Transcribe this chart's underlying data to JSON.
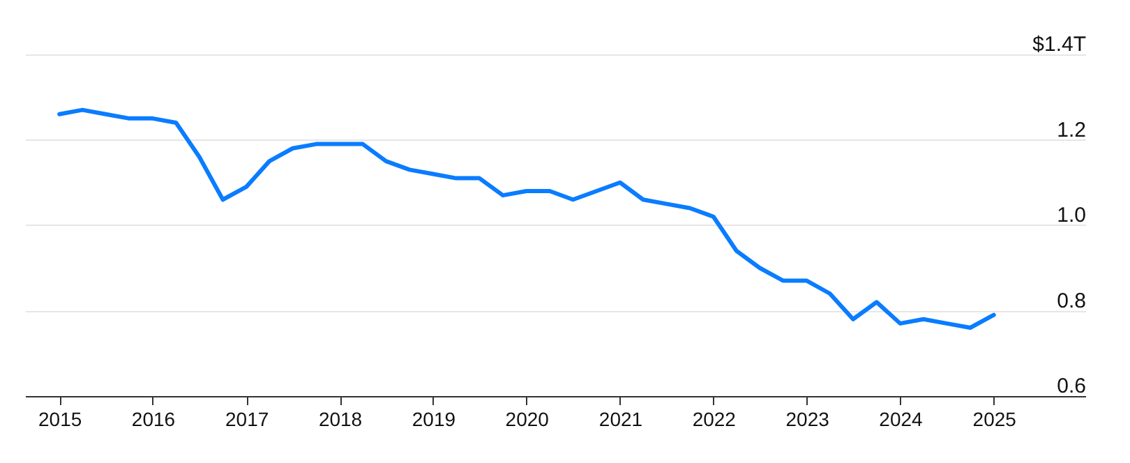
{
  "chart_data": {
    "type": "line",
    "x": [
      "2015-01",
      "2015-04",
      "2015-07",
      "2015-10",
      "2016-01",
      "2016-04",
      "2016-07",
      "2016-10",
      "2017-01",
      "2017-04",
      "2017-07",
      "2017-10",
      "2018-01",
      "2018-04",
      "2018-07",
      "2018-10",
      "2019-01",
      "2019-04",
      "2019-07",
      "2019-10",
      "2020-01",
      "2020-04",
      "2020-07",
      "2020-10",
      "2021-01",
      "2021-04",
      "2021-07",
      "2021-10",
      "2022-01",
      "2022-04",
      "2022-07",
      "2022-10",
      "2023-01",
      "2023-04",
      "2023-07",
      "2023-10",
      "2024-01",
      "2024-04",
      "2024-07",
      "2024-10",
      "2025-01"
    ],
    "series": [
      {
        "color": "#0a7cff",
        "values": [
          1.26,
          1.27,
          1.26,
          1.25,
          1.25,
          1.24,
          1.16,
          1.06,
          1.09,
          1.15,
          1.18,
          1.19,
          1.19,
          1.19,
          1.15,
          1.13,
          1.12,
          1.11,
          1.11,
          1.07,
          1.08,
          1.08,
          1.06,
          1.08,
          1.1,
          1.06,
          1.05,
          1.04,
          1.02,
          0.94,
          0.9,
          0.87,
          0.87,
          0.84,
          0.78,
          0.82,
          0.77,
          0.78,
          0.77,
          0.76,
          0.79
        ]
      }
    ],
    "xlim": [
      "2014-08-20",
      "2025-12-25"
    ],
    "xticks": [
      {
        "value": "2015",
        "label": "2015"
      },
      {
        "value": "2016",
        "label": "2016"
      },
      {
        "value": "2017",
        "label": "2017"
      },
      {
        "value": "2018",
        "label": "2018"
      },
      {
        "value": "2019",
        "label": "2019"
      },
      {
        "value": "2020",
        "label": "2020"
      },
      {
        "value": "2021",
        "label": "2021"
      },
      {
        "value": "2022",
        "label": "2022"
      },
      {
        "value": "2023",
        "label": "2023"
      },
      {
        "value": "2024",
        "label": "2024"
      },
      {
        "value": "2025",
        "label": "2025"
      }
    ],
    "ylim": [
      0.6,
      1.4
    ],
    "yticks": [
      {
        "value": 0.6,
        "label": "0.6"
      },
      {
        "value": 0.8,
        "label": "0.8"
      },
      {
        "value": 1,
        "label": "1.0"
      },
      {
        "value": 1.2,
        "label": "1.2"
      },
      {
        "value": 1.4,
        "label": "$1.4T"
      }
    ],
    "grid": "y",
    "marker": "none",
    "line_style": "solid"
  }
}
